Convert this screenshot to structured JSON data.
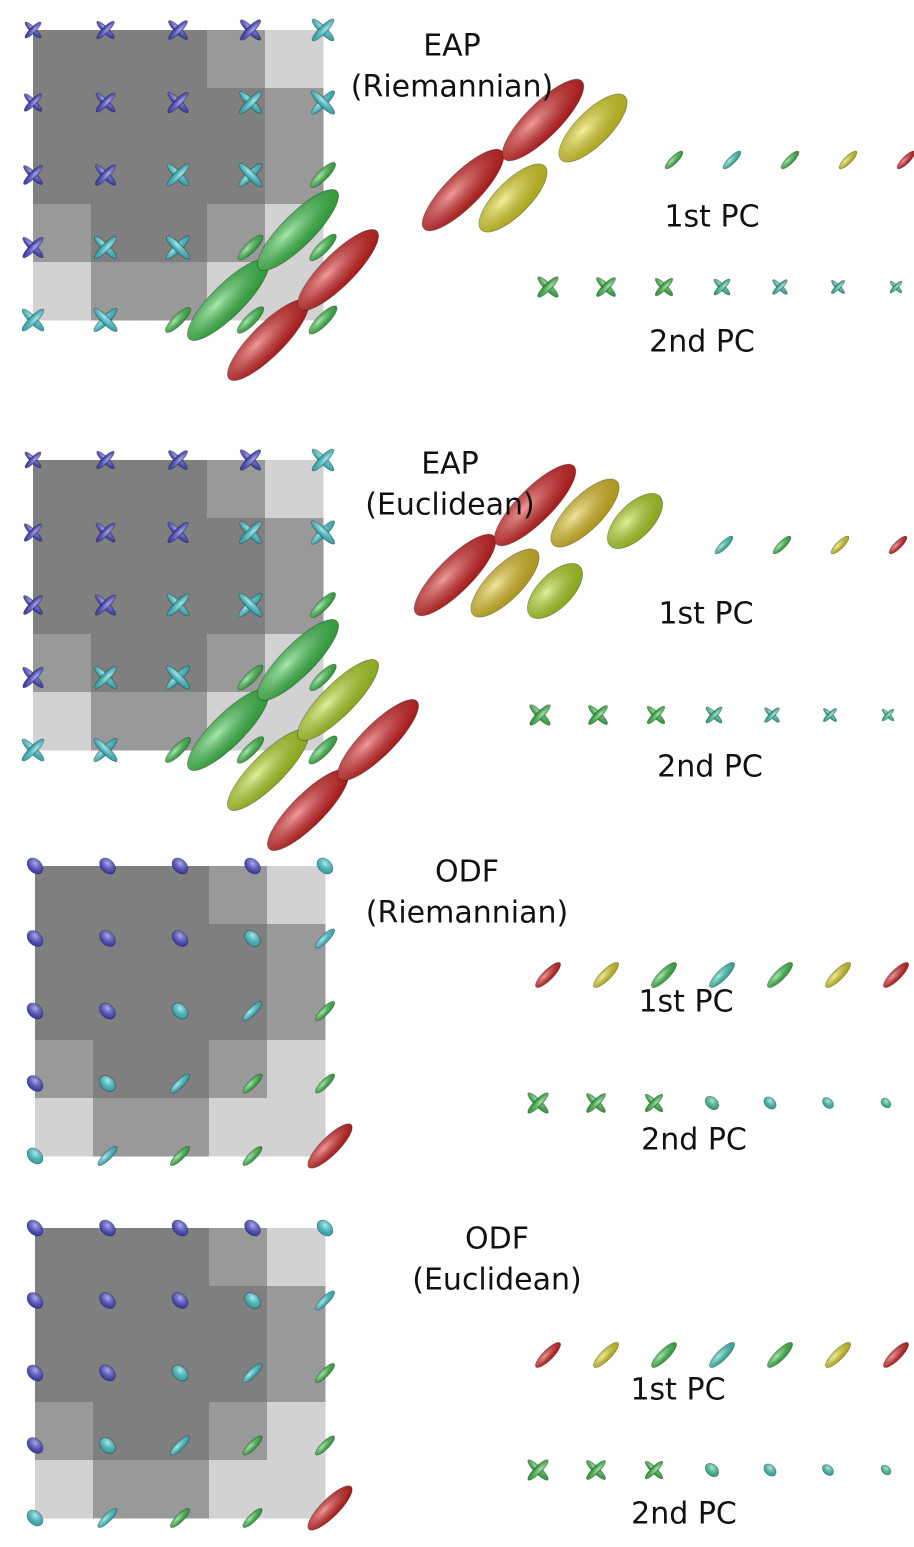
{
  "panels": [
    {
      "title": "EAP",
      "subtitle": "(Riemannian)",
      "pc1": "1st PC",
      "pc2": "2nd PC"
    },
    {
      "title": "EAP",
      "subtitle": "(Euclidean)",
      "pc1": "1st PC",
      "pc2": "2nd PC"
    },
    {
      "title": "ODF",
      "subtitle": "(Riemannian)",
      "pc1": "1st PC",
      "pc2": "2nd PC"
    },
    {
      "title": "ODF",
      "subtitle": "(Euclidean)",
      "pc1": "1st PC",
      "pc2": "2nd PC"
    }
  ]
}
